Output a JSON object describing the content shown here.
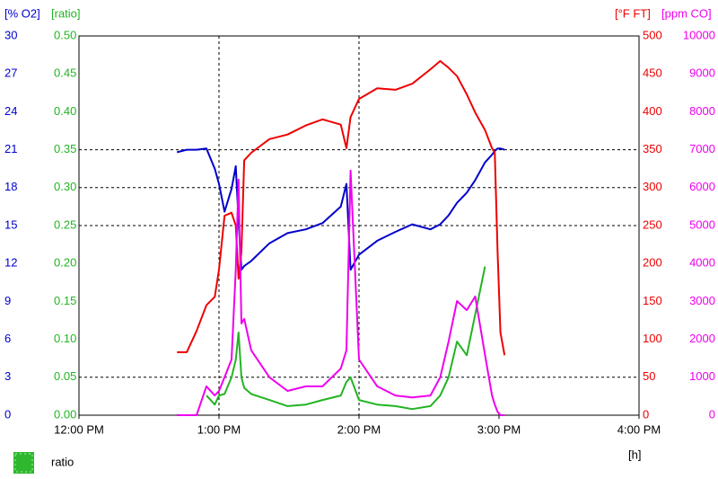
{
  "chart_data": {
    "type": "line",
    "x_label": "[h]",
    "y_label": "[% O2]",
    "y2_label": "[ratio]",
    "y3_label": "[°F FT]",
    "y4_label": "[ppm CO]",
    "xlim": [
      12,
      16
    ],
    "xticks": [
      {
        "value": 12,
        "label": "12:00 PM"
      },
      {
        "value": 13,
        "label": "1:00 PM"
      },
      {
        "value": 14,
        "label": "2:00 PM"
      },
      {
        "value": 15,
        "label": "3:00 PM"
      },
      {
        "value": 16,
        "label": "4:00 PM"
      }
    ],
    "ylim": [
      0,
      30
    ],
    "yticks": [
      0,
      3,
      6,
      9,
      12,
      15,
      18,
      21,
      24,
      27,
      30
    ],
    "y2lim": [
      0,
      0.5
    ],
    "y2ticks": [
      {
        "value": 0,
        "label": "0.00"
      },
      0.05,
      {
        "value": 0.1,
        "label": "0.10"
      },
      0.15,
      {
        "value": 0.2,
        "label": "0.20"
      },
      0.25,
      {
        "value": 0.3,
        "label": "0.30"
      },
      0.35,
      {
        "value": 0.4,
        "label": "0.40"
      },
      0.45,
      {
        "value": 0.5,
        "label": "0.50"
      }
    ],
    "y3lim": [
      0,
      500
    ],
    "y3ticks": [
      0,
      50,
      100,
      150,
      200,
      250,
      300,
      350,
      400,
      450,
      500
    ],
    "y4lim": [
      0,
      10000
    ],
    "y4ticks": [
      0,
      1000,
      2000,
      3000,
      4000,
      5000,
      6000,
      7000,
      8000,
      9000,
      10000
    ],
    "ref_y": [
      21,
      18,
      15,
      3
    ],
    "ref_x": [
      13,
      14
    ],
    "legend": "bottom-left",
    "x": [
      12.7,
      12.77,
      12.84,
      12.91,
      12.97,
      13.0,
      13.04,
      13.09,
      13.12,
      13.14,
      13.16,
      13.18,
      13.23,
      13.36,
      13.49,
      13.62,
      13.74,
      13.87,
      13.91,
      13.94,
      14.0,
      14.13,
      14.26,
      14.38,
      14.51,
      14.58,
      14.64,
      14.7,
      14.77,
      14.83,
      14.9,
      14.95,
      14.97,
      14.99,
      15.01,
      15.04
    ],
    "series": [
      {
        "axis": "y",
        "color": "#0000cc",
        "values": [
          20.8,
          21.0,
          21.0,
          21.1,
          19.5,
          18.3,
          16.1,
          17.9,
          19.7,
          15.4,
          11.5,
          11.8,
          12.2,
          13.6,
          14.4,
          14.7,
          15.2,
          16.5,
          18.3,
          11.5,
          12.7,
          13.8,
          14.5,
          15.1,
          14.7,
          15.1,
          15.8,
          16.8,
          17.6,
          18.6,
          20.0,
          20.6,
          20.9,
          21.1,
          21.1,
          21.0
        ]
      },
      {
        "axis": "y2",
        "name": "ratio",
        "color": "#22b422",
        "values": [
          null,
          null,
          null,
          0.026,
          0.014,
          0.026,
          0.028,
          0.05,
          0.073,
          0.109,
          0.05,
          0.036,
          0.028,
          0.02,
          0.012,
          0.014,
          0.02,
          0.026,
          0.044,
          0.05,
          0.02,
          0.014,
          0.012,
          0.008,
          0.012,
          0.026,
          0.05,
          0.097,
          0.079,
          0.133,
          0.196,
          null,
          null,
          null,
          null,
          null
        ]
      },
      {
        "axis": "y3",
        "color": "#ee0000",
        "values": [
          83,
          83,
          111,
          145,
          156,
          192,
          263,
          267,
          250,
          180,
          216,
          336,
          346,
          364,
          370,
          382,
          390,
          383,
          352,
          393,
          417,
          431,
          429,
          437,
          456,
          467,
          458,
          447,
          423,
          399,
          376,
          352,
          346,
          216,
          109,
          79
        ]
      },
      {
        "axis": "y4",
        "color": "#ee00ee",
        "values": [
          0,
          0,
          0,
          760,
          520,
          640,
          1000,
          1470,
          3840,
          6210,
          2420,
          2540,
          1710,
          1000,
          640,
          760,
          760,
          1230,
          1710,
          6450,
          1470,
          760,
          520,
          470,
          520,
          1000,
          1940,
          3010,
          2770,
          3130,
          1590,
          520,
          280,
          90,
          0,
          0
        ]
      }
    ]
  }
}
